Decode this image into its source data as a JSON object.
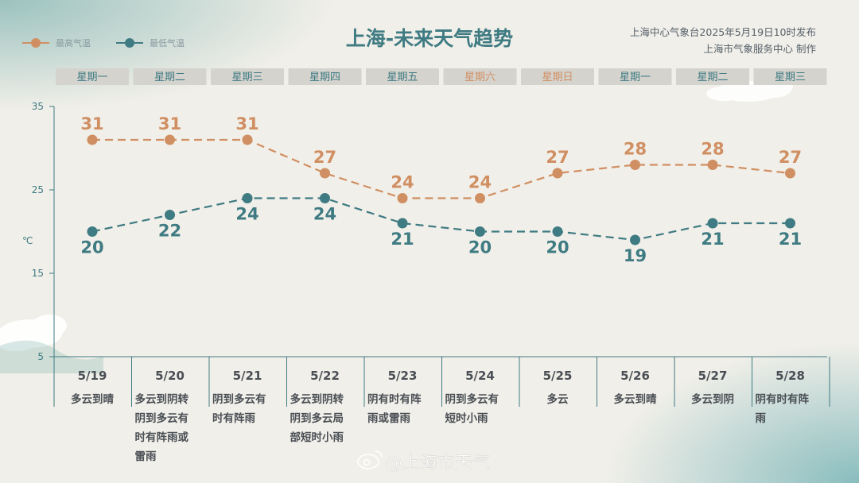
{
  "header": {
    "title": "上海-未来天气趋势",
    "issuer": "上海中心气象台2025年5月19日10时发布",
    "maker": "上海市气象服务中心  制作"
  },
  "legend": {
    "high": "最高气温",
    "low": "最低气温"
  },
  "unit_label": "℃",
  "weekdays": [
    "星期一",
    "星期二",
    "星期三",
    "星期四",
    "星期五",
    "星期六",
    "星期日",
    "星期一",
    "星期二",
    "星期三"
  ],
  "weekend_indices": [
    5,
    6
  ],
  "dates": [
    "5/19",
    "5/20",
    "5/21",
    "5/22",
    "5/23",
    "5/24",
    "5/25",
    "5/26",
    "5/27",
    "5/28"
  ],
  "weather": [
    [
      "多云到晴"
    ],
    [
      "多云到阴转",
      "阴到多云有",
      "时有阵雨或",
      "雷雨"
    ],
    [
      "阴到多云有",
      "时有阵雨"
    ],
    [
      "多云到阴转",
      "阴到多云局",
      "部短时小雨"
    ],
    [
      "阴有时有阵",
      "雨或雷雨"
    ],
    [
      "阴到多云有",
      "短时小雨"
    ],
    [
      "多云"
    ],
    [
      "多云到晴"
    ],
    [
      "多云到阴"
    ],
    [
      "阴有时有阵",
      "雨"
    ]
  ],
  "watermark": "@上海市天气",
  "colors": {
    "high": "#d08f62",
    "low": "#3f7b83",
    "title": "#3f7b83",
    "weekday_bg": "#d5d3ce",
    "weekday_text": "#3f7b83",
    "weekend_text": "#d08f62",
    "axis": "#3f7b83"
  },
  "chart_data": {
    "type": "line",
    "categories": [
      "5/19",
      "5/20",
      "5/21",
      "5/22",
      "5/23",
      "5/24",
      "5/25",
      "5/26",
      "5/27",
      "5/28"
    ],
    "series": [
      {
        "name": "最高气温",
        "values": [
          31,
          31,
          31,
          27,
          24,
          24,
          27,
          28,
          28,
          27
        ]
      },
      {
        "name": "最低气温",
        "values": [
          20,
          22,
          24,
          24,
          21,
          20,
          20,
          19,
          21,
          21
        ]
      }
    ],
    "ylim": [
      5,
      35
    ],
    "yticks": [
      5,
      15,
      25,
      35
    ],
    "ylabel": "℃",
    "legend_position": "top-left",
    "grid": false
  }
}
